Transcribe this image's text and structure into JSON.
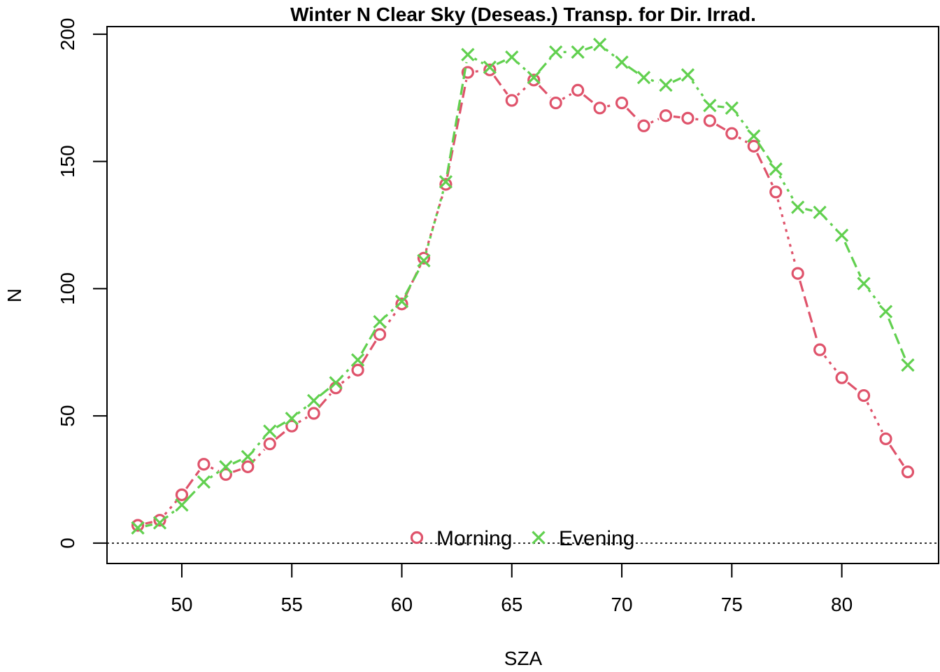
{
  "chart_data": {
    "type": "line",
    "title": "Winter N Clear Sky (Deseas.) Transp. for Dir. Irrad.",
    "xlabel": "SZA",
    "ylabel": "N",
    "xlim": [
      46.6,
      84.4
    ],
    "ylim": [
      -8,
      203
    ],
    "xticks": [
      50,
      55,
      60,
      65,
      70,
      75,
      80
    ],
    "yticks": [
      0,
      50,
      100,
      150,
      200
    ],
    "x": [
      48,
      49,
      50,
      51,
      52,
      53,
      54,
      55,
      56,
      57,
      58,
      59,
      60,
      61,
      62,
      63,
      64,
      65,
      66,
      67,
      68,
      69,
      70,
      71,
      72,
      73,
      74,
      75,
      76,
      77,
      78,
      79,
      80,
      81,
      82,
      83
    ],
    "series": [
      {
        "name": "Morning",
        "marker": "circle",
        "color": "#DF536B",
        "values": [
          7,
          9,
          19,
          31,
          27,
          30,
          39,
          46,
          51,
          61,
          68,
          82,
          94,
          112,
          141,
          185,
          186,
          174,
          182,
          173,
          178,
          171,
          173,
          164,
          168,
          167,
          166,
          161,
          156,
          138,
          106,
          76,
          65,
          58,
          41,
          28
        ]
      },
      {
        "name": "Evening",
        "marker": "cross",
        "color": "#61D04F",
        "values": [
          6,
          8,
          15,
          24,
          30,
          34,
          44,
          49,
          56,
          63,
          72,
          87,
          95,
          111,
          142,
          192,
          187,
          191,
          183,
          193,
          193,
          196,
          189,
          183,
          180,
          184,
          172,
          171,
          160,
          147,
          132,
          130,
          121,
          102,
          91,
          70
        ]
      }
    ],
    "reference_line": {
      "y": 0,
      "style": "dotted"
    },
    "legend": {
      "placement": "bottom-center",
      "entries": [
        "Morning",
        "Evening"
      ]
    },
    "grid": false
  }
}
